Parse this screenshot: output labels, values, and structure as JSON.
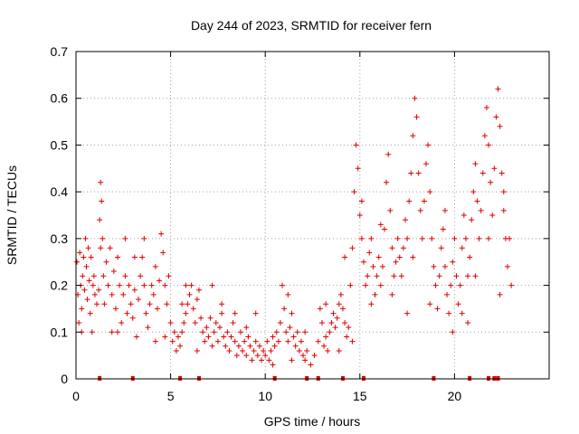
{
  "chart_data": {
    "type": "scatter",
    "title": "Day 244 of 2023, SRMTID for receiver fern",
    "xlabel": "GPS time / hours",
    "ylabel": "SRMTID / TECUs",
    "xlim": [
      0,
      25
    ],
    "ylim": [
      0,
      0.7
    ],
    "x_ticks": [
      0,
      5,
      10,
      15,
      20
    ],
    "x_tick_labels": [
      "0",
      "5",
      "10",
      "15",
      "20"
    ],
    "y_ticks": [
      0,
      0.1,
      0.2,
      0.3,
      0.4,
      0.5,
      0.6,
      0.7
    ],
    "y_tick_labels": [
      "0",
      "0.1",
      "0.2",
      "0.3",
      "0.4",
      "0.5",
      "0.6",
      "0.7"
    ],
    "grid": true,
    "marker": "+",
    "color": "#e00000",
    "series": [
      {
        "name": "SRMTID",
        "points": [
          [
            0.05,
            0.25
          ],
          [
            0.1,
            0.18
          ],
          [
            0.15,
            0.12
          ],
          [
            0.2,
            0.27
          ],
          [
            0.25,
            0.2
          ],
          [
            0.3,
            0.15
          ],
          [
            0.35,
            0.22
          ],
          [
            0.4,
            0.26
          ],
          [
            0.45,
            0.19
          ],
          [
            0.5,
            0.3
          ],
          [
            0.55,
            0.24
          ],
          [
            0.6,
            0.17
          ],
          [
            0.65,
            0.28
          ],
          [
            0.7,
            0.21
          ],
          [
            0.75,
            0.14
          ],
          [
            0.8,
            0.26
          ],
          [
            0.85,
            0.1
          ],
          [
            0.9,
            0.2
          ],
          [
            0.95,
            0.22
          ],
          [
            1.0,
            0.18
          ],
          [
            1.1,
            0.16
          ],
          [
            1.2,
            0.19
          ],
          [
            1.25,
            0.34
          ],
          [
            1.3,
            0.42
          ],
          [
            1.35,
            0.38
          ],
          [
            1.4,
            0.3
          ],
          [
            1.45,
            0.22
          ],
          [
            1.5,
            0.16
          ],
          [
            1.6,
            0.25
          ],
          [
            1.7,
            0.2
          ],
          [
            1.8,
            0.28
          ],
          [
            1.9,
            0.18
          ],
          [
            2.0,
            0.23
          ],
          [
            2.1,
            0.15
          ],
          [
            2.2,
            0.26
          ],
          [
            2.3,
            0.2
          ],
          [
            2.4,
            0.12
          ],
          [
            2.5,
            0.18
          ],
          [
            2.6,
            0.22
          ],
          [
            2.7,
            0.14
          ],
          [
            2.8,
            0.2
          ],
          [
            2.9,
            0.16
          ],
          [
            3.0,
            0.13
          ],
          [
            3.1,
            0.19
          ],
          [
            3.2,
            0.09
          ],
          [
            3.3,
            0.17
          ],
          [
            3.4,
            0.22
          ],
          [
            3.5,
            0.26
          ],
          [
            3.6,
            0.2
          ],
          [
            3.7,
            0.14
          ],
          [
            3.8,
            0.11
          ],
          [
            3.9,
            0.16
          ],
          [
            4.0,
            0.2
          ],
          [
            4.1,
            0.18
          ],
          [
            4.2,
            0.24
          ],
          [
            4.3,
            0.15
          ],
          [
            4.4,
            0.21
          ],
          [
            4.5,
            0.31
          ],
          [
            4.6,
            0.27
          ],
          [
            4.7,
            0.2
          ],
          [
            4.8,
            0.16
          ],
          [
            4.9,
            0.22
          ],
          [
            5.0,
            0.12
          ],
          [
            5.1,
            0.08
          ],
          [
            5.2,
            0.1
          ],
          [
            5.3,
            0.06
          ],
          [
            5.4,
            0.09
          ],
          [
            5.5,
            0.07
          ],
          [
            5.6,
            0.1
          ],
          [
            5.7,
            0.12
          ],
          [
            5.8,
            0.14
          ],
          [
            5.9,
            0.16
          ],
          [
            6.0,
            0.18
          ],
          [
            6.1,
            0.2
          ],
          [
            6.2,
            0.15
          ],
          [
            6.3,
            0.12
          ],
          [
            6.4,
            0.17
          ],
          [
            6.5,
            0.19
          ],
          [
            6.6,
            0.13
          ],
          [
            6.7,
            0.1
          ],
          [
            6.8,
            0.08
          ],
          [
            6.9,
            0.11
          ],
          [
            7.0,
            0.09
          ],
          [
            7.1,
            0.13
          ],
          [
            7.2,
            0.07
          ],
          [
            7.3,
            0.1
          ],
          [
            7.4,
            0.12
          ],
          [
            7.5,
            0.08
          ],
          [
            7.6,
            0.11
          ],
          [
            7.7,
            0.14
          ],
          [
            7.8,
            0.09
          ],
          [
            7.9,
            0.07
          ],
          [
            8.0,
            0.1
          ],
          [
            8.1,
            0.06
          ],
          [
            8.2,
            0.09
          ],
          [
            8.3,
            0.12
          ],
          [
            8.4,
            0.08
          ],
          [
            8.5,
            0.05
          ],
          [
            8.6,
            0.07
          ],
          [
            8.7,
            0.1
          ],
          [
            8.8,
            0.06
          ],
          [
            8.9,
            0.08
          ],
          [
            9.0,
            0.05
          ],
          [
            9.1,
            0.09
          ],
          [
            9.2,
            0.07
          ],
          [
            9.3,
            0.04
          ],
          [
            9.4,
            0.06
          ],
          [
            9.5,
            0.08
          ],
          [
            9.6,
            0.05
          ],
          [
            9.7,
            0.07
          ],
          [
            9.8,
            0.04
          ],
          [
            9.9,
            0.06
          ],
          [
            10.0,
            0.05
          ],
          [
            10.1,
            0.08
          ],
          [
            10.2,
            0.04
          ],
          [
            10.3,
            0.06
          ],
          [
            10.4,
            0.09
          ],
          [
            10.5,
            0.07
          ],
          [
            10.6,
            0.1
          ],
          [
            10.7,
            0.08
          ],
          [
            10.8,
            0.12
          ],
          [
            10.9,
            0.2
          ],
          [
            11.0,
            0.15
          ],
          [
            11.1,
            0.1
          ],
          [
            11.2,
            0.08
          ],
          [
            11.3,
            0.11
          ],
          [
            11.4,
            0.14
          ],
          [
            11.5,
            0.09
          ],
          [
            11.6,
            0.07
          ],
          [
            11.7,
            0.1
          ],
          [
            11.8,
            0.06
          ],
          [
            11.9,
            0.08
          ],
          [
            12.0,
            0.05
          ],
          [
            12.1,
            0.04
          ],
          [
            12.2,
            0.06
          ],
          [
            12.4,
            0.03
          ],
          [
            12.6,
            0.05
          ],
          [
            12.8,
            0.08
          ],
          [
            12.9,
            0.15
          ],
          [
            13.0,
            0.12
          ],
          [
            13.1,
            0.07
          ],
          [
            13.2,
            0.09
          ],
          [
            13.3,
            0.06
          ],
          [
            13.4,
            0.1
          ],
          [
            13.5,
            0.12
          ],
          [
            13.6,
            0.14
          ],
          [
            13.7,
            0.11
          ],
          [
            13.8,
            0.13
          ],
          [
            13.9,
            0.16
          ],
          [
            14.0,
            0.18
          ],
          [
            14.1,
            0.15
          ],
          [
            14.2,
            0.12
          ],
          [
            14.3,
            0.09
          ],
          [
            14.4,
            0.11
          ],
          [
            14.5,
            0.2
          ],
          [
            14.6,
            0.28
          ],
          [
            14.7,
            0.4
          ],
          [
            14.8,
            0.5
          ],
          [
            14.9,
            0.45
          ],
          [
            15.0,
            0.35
          ],
          [
            15.1,
            0.3
          ],
          [
            15.2,
            0.25
          ],
          [
            15.3,
            0.2
          ],
          [
            15.4,
            0.22
          ],
          [
            15.5,
            0.27
          ],
          [
            15.6,
            0.3
          ],
          [
            15.7,
            0.24
          ],
          [
            15.8,
            0.18
          ],
          [
            15.9,
            0.22
          ],
          [
            16.0,
            0.26
          ],
          [
            16.1,
            0.2
          ],
          [
            16.2,
            0.24
          ],
          [
            16.3,
            0.32
          ],
          [
            16.4,
            0.42
          ],
          [
            16.5,
            0.48
          ],
          [
            16.6,
            0.36
          ],
          [
            16.7,
            0.28
          ],
          [
            16.8,
            0.22
          ],
          [
            16.9,
            0.25
          ],
          [
            17.0,
            0.3
          ],
          [
            17.1,
            0.26
          ],
          [
            17.2,
            0.22
          ],
          [
            17.3,
            0.28
          ],
          [
            17.4,
            0.34
          ],
          [
            17.5,
            0.3
          ],
          [
            17.6,
            0.38
          ],
          [
            17.7,
            0.44
          ],
          [
            17.8,
            0.52
          ],
          [
            17.9,
            0.6
          ],
          [
            18.0,
            0.56
          ],
          [
            18.1,
            0.44
          ],
          [
            18.2,
            0.36
          ],
          [
            18.3,
            0.3
          ],
          [
            18.4,
            0.38
          ],
          [
            18.5,
            0.46
          ],
          [
            18.6,
            0.5
          ],
          [
            18.7,
            0.4
          ],
          [
            18.8,
            0.3
          ],
          [
            18.9,
            0.24
          ],
          [
            19.0,
            0.2
          ],
          [
            19.1,
            0.15
          ],
          [
            19.2,
            0.22
          ],
          [
            19.3,
            0.28
          ],
          [
            19.4,
            0.32
          ],
          [
            19.5,
            0.24
          ],
          [
            19.6,
            0.18
          ],
          [
            19.7,
            0.14
          ],
          [
            19.8,
            0.2
          ],
          [
            19.9,
            0.25
          ],
          [
            20.0,
            0.3
          ],
          [
            20.1,
            0.22
          ],
          [
            20.2,
            0.16
          ],
          [
            20.3,
            0.2
          ],
          [
            20.4,
            0.28
          ],
          [
            20.5,
            0.35
          ],
          [
            20.6,
            0.3
          ],
          [
            20.7,
            0.22
          ],
          [
            20.8,
            0.26
          ],
          [
            20.9,
            0.34
          ],
          [
            21.0,
            0.4
          ],
          [
            21.1,
            0.46
          ],
          [
            21.2,
            0.38
          ],
          [
            21.3,
            0.3
          ],
          [
            21.4,
            0.36
          ],
          [
            21.5,
            0.44
          ],
          [
            21.6,
            0.52
          ],
          [
            21.7,
            0.58
          ],
          [
            21.8,
            0.5
          ],
          [
            21.9,
            0.42
          ],
          [
            22.0,
            0.35
          ],
          [
            22.1,
            0.45
          ],
          [
            22.2,
            0.56
          ],
          [
            22.3,
            0.62
          ],
          [
            22.4,
            0.54
          ],
          [
            22.5,
            0.44
          ],
          [
            22.6,
            0.36
          ],
          [
            22.7,
            0.3
          ],
          [
            22.8,
            0.24
          ],
          [
            22.9,
            0.3
          ],
          [
            23.0,
            0.2
          ],
          [
            0.3,
            0.1
          ],
          [
            1.3,
            0.28
          ],
          [
            2.2,
            0.1
          ],
          [
            3.6,
            0.3
          ],
          [
            4.7,
            0.09
          ],
          [
            6.4,
            0.06
          ],
          [
            7.7,
            0.16
          ],
          [
            9.0,
            0.11
          ],
          [
            10.4,
            0.03
          ],
          [
            11.4,
            0.04
          ],
          [
            13.2,
            0.16
          ],
          [
            14.6,
            0.08
          ],
          [
            15.6,
            0.16
          ],
          [
            16.7,
            0.18
          ],
          [
            17.8,
            0.26
          ],
          [
            18.7,
            0.16
          ],
          [
            19.5,
            0.36
          ],
          [
            20.4,
            0.14
          ],
          [
            21.1,
            0.22
          ],
          [
            21.8,
            0.3
          ],
          [
            1.9,
            0.1
          ],
          [
            4.2,
            0.08
          ],
          [
            5.8,
            0.2
          ],
          [
            8.4,
            0.14
          ],
          [
            11.2,
            0.18
          ],
          [
            13.9,
            0.06
          ],
          [
            15.1,
            0.38
          ],
          [
            17.5,
            0.14
          ],
          [
            19.9,
            0.1
          ],
          [
            22.4,
            0.18
          ],
          [
            2.6,
            0.3
          ],
          [
            3.1,
            0.26
          ],
          [
            5.6,
            0.16
          ],
          [
            7.2,
            0.2
          ],
          [
            9.5,
            0.14
          ],
          [
            12.1,
            0.1
          ],
          [
            14.2,
            0.26
          ],
          [
            16.1,
            0.33
          ],
          [
            20.7,
            0.12
          ],
          [
            22.6,
            0.4
          ]
        ]
      }
    ],
    "flag_markers_x": [
      1.25,
      3.0,
      5.5,
      6.5,
      10.5,
      12.2,
      12.8,
      14.1,
      15.2,
      18.9,
      20.8,
      21.8,
      22.1,
      22.3
    ]
  }
}
